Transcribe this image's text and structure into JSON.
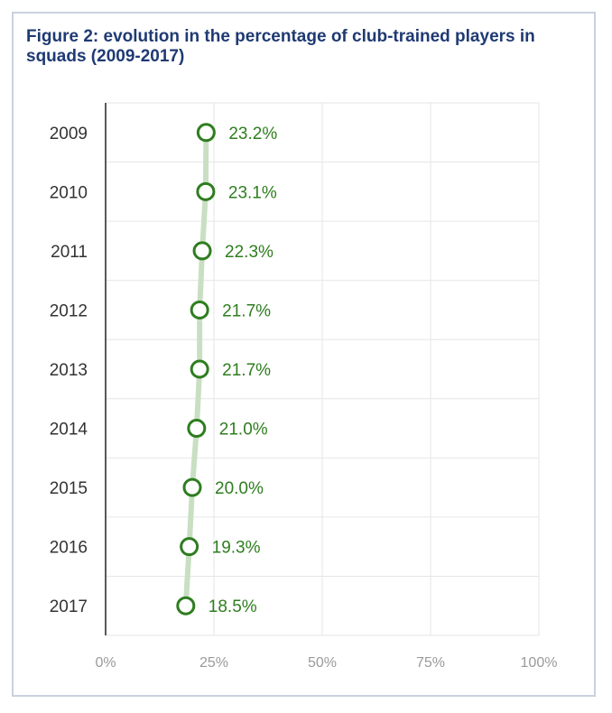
{
  "chart_data": {
    "type": "line",
    "title": "Figure 2: evolution in the percentage of club-trained players in squads (2009-2017)",
    "orientation": "horizontal",
    "categories": [
      "2009",
      "2010",
      "2011",
      "2012",
      "2013",
      "2014",
      "2015",
      "2016",
      "2017"
    ],
    "values": [
      23.2,
      23.1,
      22.3,
      21.7,
      21.7,
      21.0,
      20.0,
      19.3,
      18.5
    ],
    "data_labels": [
      "23.2%",
      "23.1%",
      "22.3%",
      "21.7%",
      "21.7%",
      "21.0%",
      "20.0%",
      "19.3%",
      "18.5%"
    ],
    "xlim": [
      0,
      100
    ],
    "xticks": [
      "0%",
      "25%",
      "50%",
      "75%",
      "100%"
    ],
    "xlabel": "",
    "ylabel": "",
    "grid": true,
    "colors": {
      "marker": "#2e7d1f",
      "line": "#c9dfc2",
      "label": "#2e7d1f",
      "grid": "#e6e6e6",
      "title": "#1f3a73",
      "frame": "#c9d1e0"
    }
  }
}
